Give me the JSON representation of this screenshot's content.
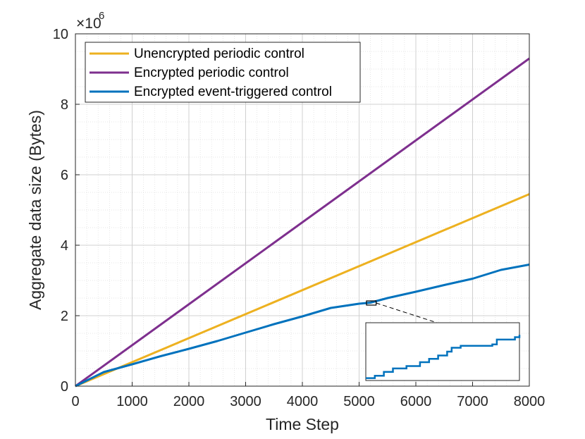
{
  "chart_data": {
    "type": "line",
    "xlabel": "Time Step",
    "ylabel": "Aggregate data size (Bytes)",
    "xlim": [
      0,
      8000
    ],
    "ylim": [
      0,
      10
    ],
    "xticks": [
      "0",
      "1000",
      "2000",
      "3000",
      "4000",
      "5000",
      "6000",
      "7000",
      "8000"
    ],
    "yticks": [
      "0",
      "2",
      "4",
      "6",
      "8",
      "10"
    ],
    "y_multiplier": {
      "base": "×10",
      "exponent": "6"
    },
    "grid": "major and minor",
    "legend_position": "top-left",
    "series": [
      {
        "name": "Unencrypted periodic control",
        "color": "#EDB120",
        "x": [
          0,
          8000
        ],
        "y": [
          0,
          5.45
        ]
      },
      {
        "name": "Encrypted periodic control",
        "color": "#7E2F8E",
        "x": [
          0,
          8000
        ],
        "y": [
          0,
          9.3
        ]
      },
      {
        "name": "Encrypted event-triggered control",
        "color": "#0072BD",
        "x": [
          0,
          500,
          1000,
          1500,
          2000,
          2500,
          3000,
          3500,
          4000,
          4500,
          5000,
          5200,
          5500,
          6000,
          6500,
          7000,
          7500,
          8000
        ],
        "y": [
          0,
          0.4,
          0.62,
          0.85,
          1.06,
          1.28,
          1.52,
          1.76,
          1.98,
          2.22,
          2.34,
          2.37,
          2.5,
          2.68,
          2.87,
          3.05,
          3.3,
          3.45
        ]
      }
    ],
    "inset": {
      "description": "zoomed view of encrypted event-triggered control",
      "x_range": [
        5130,
        5300
      ],
      "y_range": [
        2.3,
        2.42
      ],
      "steps_x": [
        5130,
        5140,
        5150,
        5160,
        5175,
        5190,
        5200,
        5210,
        5220,
        5225,
        5235,
        5270,
        5275,
        5290,
        5295,
        5300
      ],
      "steps_y": [
        2.305,
        2.31,
        2.318,
        2.325,
        2.33,
        2.338,
        2.345,
        2.352,
        2.36,
        2.368,
        2.372,
        2.375,
        2.385,
        2.385,
        2.39,
        2.395
      ]
    }
  }
}
